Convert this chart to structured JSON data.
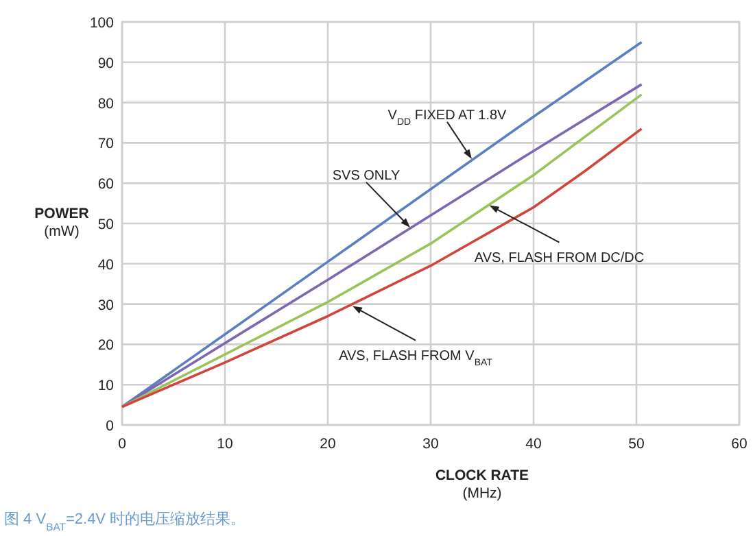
{
  "chart_data": {
    "type": "line",
    "xlabel": "CLOCK RATE\n(MHz)",
    "ylabel": "POWER\n(mW)",
    "xlim": [
      0,
      60
    ],
    "xticks": [
      0,
      10,
      20,
      30,
      40,
      50,
      60
    ],
    "ylim": [
      0,
      100
    ],
    "yticks": [
      0,
      10,
      20,
      30,
      40,
      50,
      60,
      70,
      80,
      90,
      100
    ],
    "grid": true,
    "marker": "none",
    "line_style": "solid",
    "series": [
      {
        "color": "#5b7fc0",
        "x": [
          0,
          10,
          20,
          30,
          40,
          50.5
        ],
        "values": [
          4.5,
          22.5,
          40.5,
          58.5,
          76.5,
          95
        ]
      },
      {
        "color": "#7d68b0",
        "x": [
          0,
          10,
          20,
          30,
          40,
          50.5
        ],
        "values": [
          4.5,
          20.3,
          36,
          52,
          68,
          84.5
        ]
      },
      {
        "color": "#9cc35a",
        "x": [
          0,
          10,
          20,
          30,
          40,
          50.5
        ],
        "values": [
          4.5,
          17.5,
          30.5,
          45,
          62,
          82
        ]
      },
      {
        "color": "#d0463c",
        "x": [
          0,
          5,
          10,
          20,
          30,
          40,
          45,
          50.5
        ],
        "values": [
          4.5,
          10,
          15.5,
          27,
          39.5,
          54,
          63,
          73.5
        ]
      }
    ],
    "annotations": [
      {
        "text": "V$_{DD}$ FIXED AT 1.8V",
        "x": 34,
        "y": 66
      },
      {
        "text": "SVS ONLY",
        "x": 28,
        "y": 49
      },
      {
        "text": "AVS, FLASH FROM DC/DC",
        "x": 35.7,
        "y": 54.5
      },
      {
        "text": "AVS, FLASH FROM V$_{BAT}$",
        "x": 22.4,
        "y": 29.5
      },
      "图 4 V$_{BAT}$=2.4V 时的电压缩放结果。"
    ]
  }
}
